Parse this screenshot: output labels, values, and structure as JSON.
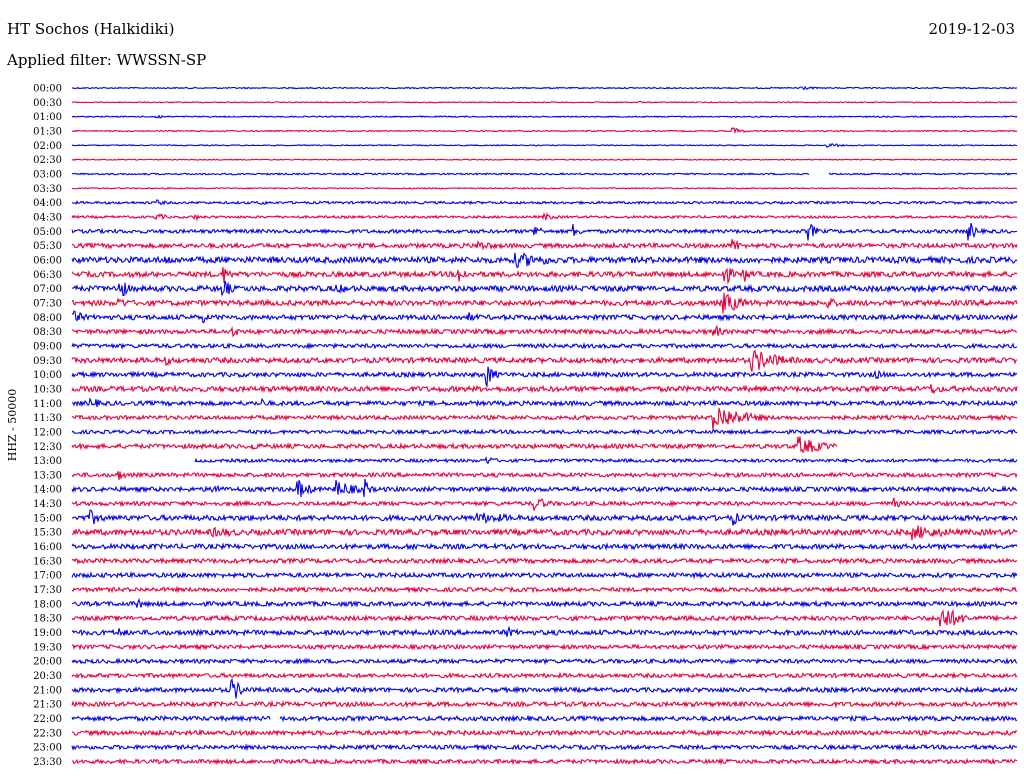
{
  "header": {
    "station": "HT Sochos (Halkidiki)",
    "date": "2019-12-03",
    "filter": "Applied filter: WWSSN-SP"
  },
  "chart_data": {
    "type": "line",
    "title": "HT Sochos (Halkidiki)",
    "subtitle": "Applied filter: WWSSN-SP",
    "ylabel": "HHZ - 50000",
    "colors": [
      "#0000e6",
      "#e6003c"
    ],
    "series": [
      {
        "name": "00:00",
        "noise": 0.6
      },
      {
        "name": "00:30",
        "noise": 0.5
      },
      {
        "name": "01:00",
        "noise": 0.6
      },
      {
        "name": "01:30",
        "noise": 0.6
      },
      {
        "name": "02:00",
        "noise": 0.5
      },
      {
        "name": "02:30",
        "noise": 0.5
      },
      {
        "name": "03:00",
        "noise": 0.8
      },
      {
        "name": "03:30",
        "noise": 0.6
      },
      {
        "name": "04:00",
        "noise": 1.2
      },
      {
        "name": "04:30",
        "noise": 1.2
      },
      {
        "name": "05:00",
        "noise": 1.8
      },
      {
        "name": "05:30",
        "noise": 2.2
      },
      {
        "name": "06:00",
        "noise": 3.0
      },
      {
        "name": "06:30",
        "noise": 2.6
      },
      {
        "name": "07:00",
        "noise": 2.8
      },
      {
        "name": "07:30",
        "noise": 2.6
      },
      {
        "name": "08:00",
        "noise": 2.4
      },
      {
        "name": "08:30",
        "noise": 2.2
      },
      {
        "name": "09:00",
        "noise": 2.0
      },
      {
        "name": "09:30",
        "noise": 2.6
      },
      {
        "name": "10:00",
        "noise": 2.2
      },
      {
        "name": "10:30",
        "noise": 2.6
      },
      {
        "name": "11:00",
        "noise": 2.2
      },
      {
        "name": "11:30",
        "noise": 2.0
      },
      {
        "name": "12:00",
        "noise": 1.8
      },
      {
        "name": "12:30",
        "noise": 2.2
      },
      {
        "name": "13:00",
        "noise": 1.6
      },
      {
        "name": "13:30",
        "noise": 2.0
      },
      {
        "name": "14:00",
        "noise": 2.2
      },
      {
        "name": "14:30",
        "noise": 2.0
      },
      {
        "name": "15:00",
        "noise": 2.6
      },
      {
        "name": "15:30",
        "noise": 2.8
      },
      {
        "name": "16:00",
        "noise": 2.4
      },
      {
        "name": "16:30",
        "noise": 2.2
      },
      {
        "name": "17:00",
        "noise": 2.2
      },
      {
        "name": "17:30",
        "noise": 2.0
      },
      {
        "name": "18:00",
        "noise": 2.2
      },
      {
        "name": "18:30",
        "noise": 2.2
      },
      {
        "name": "19:00",
        "noise": 2.4
      },
      {
        "name": "19:30",
        "noise": 2.0
      },
      {
        "name": "20:00",
        "noise": 2.0
      },
      {
        "name": "20:30",
        "noise": 2.0
      },
      {
        "name": "21:00",
        "noise": 2.2
      },
      {
        "name": "21:30",
        "noise": 2.2
      },
      {
        "name": "22:00",
        "noise": 2.2
      },
      {
        "name": "22:30",
        "noise": 2.2
      },
      {
        "name": "23:00",
        "noise": 2.0
      },
      {
        "name": "23:30",
        "noise": 2.0
      }
    ],
    "events": [
      {
        "row": 0,
        "at": 0.77,
        "amp": 2.5,
        "dur": 0.02
      },
      {
        "row": 1,
        "at": 0.6,
        "amp": 1.2,
        "dur": 0.01
      },
      {
        "row": 2,
        "at": 0.09,
        "amp": 2.5,
        "dur": 0.01
      },
      {
        "row": 3,
        "at": 0.7,
        "amp": 3.5,
        "dur": 0.015
      },
      {
        "row": 4,
        "at": 0.8,
        "amp": 3.0,
        "dur": 0.015
      },
      {
        "row": 8,
        "at": 0.09,
        "amp": 3.0,
        "dur": 0.015
      },
      {
        "row": 8,
        "at": 0.2,
        "amp": 3.0,
        "dur": 0.01
      },
      {
        "row": 9,
        "at": 0.09,
        "amp": 4.0,
        "dur": 0.015
      },
      {
        "row": 9,
        "at": 0.13,
        "amp": 3.5,
        "dur": 0.01
      },
      {
        "row": 9,
        "at": 0.5,
        "amp": 4.0,
        "dur": 0.02
      },
      {
        "row": 10,
        "at": 0.49,
        "amp": 8.0,
        "dur": 0.01
      },
      {
        "row": 10,
        "at": 0.53,
        "amp": 8.0,
        "dur": 0.01
      },
      {
        "row": 10,
        "at": 0.78,
        "amp": 10.0,
        "dur": 0.01
      },
      {
        "row": 10,
        "at": 0.95,
        "amp": 10.0,
        "dur": 0.01
      },
      {
        "row": 11,
        "at": 0.43,
        "amp": 5.0,
        "dur": 0.05
      },
      {
        "row": 11,
        "at": 0.7,
        "amp": 8.0,
        "dur": 0.01
      },
      {
        "row": 12,
        "at": 0.47,
        "amp": 8.0,
        "dur": 0.08
      },
      {
        "row": 12,
        "at": 0.1,
        "amp": 5.0,
        "dur": 0.03
      },
      {
        "row": 13,
        "at": 0.69,
        "amp": 14.0,
        "dur": 0.01
      },
      {
        "row": 13,
        "at": 0.71,
        "amp": 10.0,
        "dur": 0.01
      },
      {
        "row": 13,
        "at": 0.41,
        "amp": 10.0,
        "dur": 0.01
      },
      {
        "row": 13,
        "at": 0.16,
        "amp": 10.0,
        "dur": 0.01
      },
      {
        "row": 14,
        "at": 0.05,
        "amp": 14.0,
        "dur": 0.01
      },
      {
        "row": 14,
        "at": 0.16,
        "amp": 12.0,
        "dur": 0.01
      },
      {
        "row": 14,
        "at": 0.28,
        "amp": 5.0,
        "dur": 0.04
      },
      {
        "row": 15,
        "at": 0.69,
        "amp": 12.0,
        "dur": 0.03
      },
      {
        "row": 15,
        "at": 0.05,
        "amp": 6.0,
        "dur": 0.02
      },
      {
        "row": 15,
        "at": 0.8,
        "amp": 6.0,
        "dur": 0.02
      },
      {
        "row": 16,
        "at": 0.0,
        "amp": 8.0,
        "dur": 0.02
      },
      {
        "row": 16,
        "at": 0.42,
        "amp": 5.0,
        "dur": 0.02
      },
      {
        "row": 16,
        "at": 0.14,
        "amp": 6.0,
        "dur": 0.005
      },
      {
        "row": 17,
        "at": 0.17,
        "amp": 5.0,
        "dur": 0.02
      },
      {
        "row": 17,
        "at": 0.68,
        "amp": 8.0,
        "dur": 0.01
      },
      {
        "row": 19,
        "at": 0.1,
        "amp": 5.0,
        "dur": 0.03
      },
      {
        "row": 19,
        "at": 0.72,
        "amp": 12.0,
        "dur": 0.05
      },
      {
        "row": 20,
        "at": 0.44,
        "amp": 12.0,
        "dur": 0.01
      },
      {
        "row": 20,
        "at": 0.85,
        "amp": 5.0,
        "dur": 0.02
      },
      {
        "row": 21,
        "at": 0.91,
        "amp": 6.0,
        "dur": 0.02
      },
      {
        "row": 22,
        "at": 0.02,
        "amp": 6.0,
        "dur": 0.02
      },
      {
        "row": 22,
        "at": 0.2,
        "amp": 5.0,
        "dur": 0.02
      },
      {
        "row": 23,
        "at": 0.68,
        "amp": 14.0,
        "dur": 0.05
      },
      {
        "row": 25,
        "at": 0.77,
        "amp": 10.0,
        "dur": 0.04
      },
      {
        "row": 25,
        "at": 0.19,
        "amp": 5.0,
        "dur": 0.01
      },
      {
        "row": 26,
        "at": 0.44,
        "amp": 4.0,
        "dur": 0.02
      },
      {
        "row": 27,
        "at": 0.05,
        "amp": 6.0,
        "dur": 0.01
      },
      {
        "row": 28,
        "at": 0.15,
        "amp": 10.0,
        "dur": 0.005
      },
      {
        "row": 28,
        "at": 0.24,
        "amp": 10.0,
        "dur": 0.02
      },
      {
        "row": 28,
        "at": 0.28,
        "amp": 10.0,
        "dur": 0.03
      },
      {
        "row": 28,
        "at": 0.31,
        "amp": 12.0,
        "dur": 0.005
      },
      {
        "row": 29,
        "at": 0.49,
        "amp": 8.0,
        "dur": 0.02
      },
      {
        "row": 29,
        "at": 0.87,
        "amp": 6.0,
        "dur": 0.01
      },
      {
        "row": 30,
        "at": 0.02,
        "amp": 8.0,
        "dur": 0.02
      },
      {
        "row": 30,
        "at": 0.43,
        "amp": 6.0,
        "dur": 0.08
      },
      {
        "row": 30,
        "at": 0.7,
        "amp": 8.0,
        "dur": 0.01
      },
      {
        "row": 31,
        "at": 0.89,
        "amp": 8.0,
        "dur": 0.07
      },
      {
        "row": 31,
        "at": 0.15,
        "amp": 5.0,
        "dur": 0.08
      },
      {
        "row": 32,
        "at": 0.36,
        "amp": 6.0,
        "dur": 0.01
      },
      {
        "row": 36,
        "at": 0.07,
        "amp": 6.0,
        "dur": 0.01
      },
      {
        "row": 37,
        "at": 0.92,
        "amp": 14.0,
        "dur": 0.03
      },
      {
        "row": 38,
        "at": 0.46,
        "amp": 6.0,
        "dur": 0.02
      },
      {
        "row": 38,
        "at": 0.05,
        "amp": 5.0,
        "dur": 0.02
      },
      {
        "row": 42,
        "at": 0.17,
        "amp": 12.0,
        "dur": 0.015
      },
      {
        "row": 44,
        "at": 0.21,
        "amp": 3.0,
        "dur": 0.01
      }
    ],
    "gaps": [
      {
        "row": 6,
        "from": 0.78,
        "to": 0.8
      },
      {
        "row": 25,
        "from": 0.81,
        "to": 1.0
      },
      {
        "row": 26,
        "from": 0.0,
        "to": 0.13
      },
      {
        "row": 44,
        "from": 0.21,
        "to": 0.22
      }
    ]
  }
}
